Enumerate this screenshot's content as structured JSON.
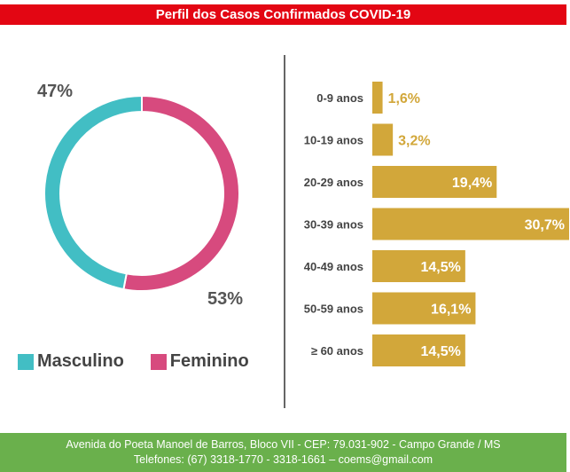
{
  "header": {
    "title": "Perfil dos Casos Confirmados COVID-19"
  },
  "chart_data": [
    {
      "type": "pie",
      "title": "",
      "slices": [
        {
          "label": "Masculino",
          "value": 47,
          "value_label": "47%",
          "color": "#42bec4"
        },
        {
          "label": "Feminino",
          "value": 53,
          "value_label": "53%",
          "color": "#d74a7e"
        }
      ],
      "donut": true,
      "legend": "bottom"
    },
    {
      "type": "bar",
      "orientation": "horizontal",
      "title": "",
      "categories": [
        "0-9 anos",
        "10-19 anos",
        "20-29 anos",
        "30-39 anos",
        "40-49 anos",
        "50-59 anos",
        "≥ 60 anos"
      ],
      "values": [
        1.6,
        3.2,
        19.4,
        30.7,
        14.5,
        16.1,
        14.5
      ],
      "value_labels": [
        "1,6%",
        "3,2%",
        "19,4%",
        "30,7%",
        "14,5%",
        "16,1%",
        "14,5%"
      ],
      "color": "#d2a73a",
      "xlim": [
        0,
        30.7
      ],
      "grid": false
    }
  ],
  "footer": {
    "line1": "Avenida do Poeta Manoel de Barros, Bloco VII - CEP: 79.031-902 - Campo Grande / MS",
    "line2": "Telefones: (67) 3318-1770 - 3318-1661 – coems@gmail.com"
  }
}
